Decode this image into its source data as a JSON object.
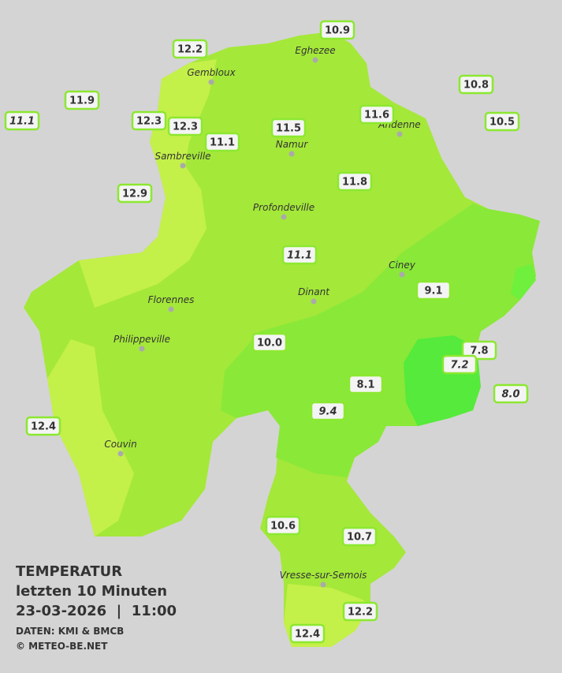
{
  "title": {
    "line1": "TEMPERATUR",
    "line2": "letzten 10 Minuten",
    "line3": "23-03-2026  |  11:00",
    "source": "DATEN: KMI & BMCB",
    "copyright": "© METEO-BE.NET"
  },
  "cities": [
    "Eghezee",
    "Gembloux",
    "Andenne",
    "Namur",
    "Sambreville",
    "Profondeville",
    "Ciney",
    "Dinant",
    "Florennes",
    "Philippeville",
    "Couvin",
    "Vresse-sur-Semois"
  ],
  "stations": [
    {
      "value": "10.9",
      "italic": false
    },
    {
      "value": "12.2",
      "italic": false
    },
    {
      "value": "11.9",
      "italic": false
    },
    {
      "value": "11.1",
      "italic": true
    },
    {
      "value": "12.3",
      "italic": false
    },
    {
      "value": "12.3",
      "italic": false
    },
    {
      "value": "10.8",
      "italic": false
    },
    {
      "value": "11.6",
      "italic": false
    },
    {
      "value": "10.5",
      "italic": false
    },
    {
      "value": "11.5",
      "italic": false
    },
    {
      "value": "11.1",
      "italic": false
    },
    {
      "value": "12.9",
      "italic": false
    },
    {
      "value": "11.8",
      "italic": false
    },
    {
      "value": "11.1",
      "italic": true
    },
    {
      "value": "9.1",
      "italic": false
    },
    {
      "value": "10.0",
      "italic": false
    },
    {
      "value": "7.8",
      "italic": false
    },
    {
      "value": "7.2",
      "italic": true
    },
    {
      "value": "8.1",
      "italic": false
    },
    {
      "value": "8.0",
      "italic": true
    },
    {
      "value": "9.4",
      "italic": true
    },
    {
      "value": "12.4",
      "italic": false
    },
    {
      "value": "10.6",
      "italic": false
    },
    {
      "value": "10.7",
      "italic": false
    },
    {
      "value": "12.2",
      "italic": false
    },
    {
      "value": "12.4",
      "italic": false
    }
  ]
}
